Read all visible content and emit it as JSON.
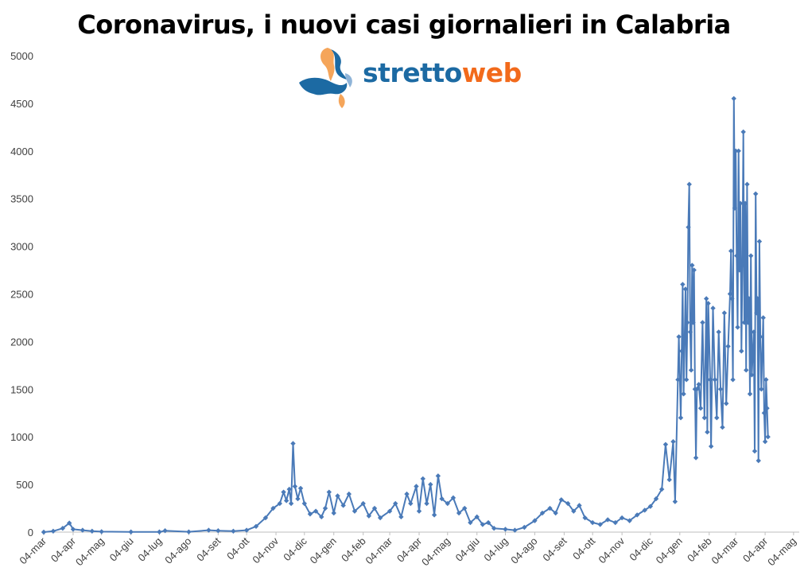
{
  "header": {
    "title": "Coronavirus, i nuovi casi giornalieri in Calabria"
  },
  "logo": {
    "part1": "stretto",
    "part2": "web",
    "color1": "#1c6aa3",
    "color2": "#f26a1b"
  },
  "chart_data": {
    "type": "line",
    "title": "Coronavirus, i nuovi casi giornalieri in Calabria",
    "xlabel": "",
    "ylabel": "",
    "ylim": [
      0,
      5000
    ],
    "yticks": [
      0,
      500,
      1000,
      1500,
      2000,
      2500,
      3000,
      3500,
      4000,
      4500,
      5000
    ],
    "x_range": [
      "2020-03-04",
      "2022-05-10"
    ],
    "xtick_labels": [
      "04-mar",
      "04-apr",
      "04-mag",
      "04-giu",
      "04-lug",
      "04-ago",
      "04-set",
      "04-ott",
      "04-nov",
      "04-dic",
      "04-gen",
      "04-feb",
      "04-mar",
      "04-apr",
      "04-mag",
      "04-giu",
      "04-lug",
      "04-ago",
      "04-set",
      "04-ott",
      "04-nov",
      "04-dic",
      "04-gen",
      "04-feb",
      "04-mar",
      "04-apr",
      "04-mag"
    ],
    "xtick_dates": [
      "2020-03-04",
      "2020-04-04",
      "2020-05-04",
      "2020-06-04",
      "2020-07-04",
      "2020-08-04",
      "2020-09-04",
      "2020-10-04",
      "2020-11-04",
      "2020-12-04",
      "2021-01-04",
      "2021-02-04",
      "2021-03-04",
      "2021-04-04",
      "2021-05-04",
      "2021-06-04",
      "2021-07-04",
      "2021-08-04",
      "2021-09-04",
      "2021-10-04",
      "2021-11-04",
      "2021-12-04",
      "2022-01-04",
      "2022-02-04",
      "2022-03-04",
      "2022-04-04",
      "2022-05-04"
    ],
    "grid": false,
    "legend": "none",
    "series": [
      {
        "color": "#4a7ab8",
        "marker": "diamond",
        "points": [
          {
            "x": "2020-03-04",
            "y": 0
          },
          {
            "x": "2020-03-14",
            "y": 10
          },
          {
            "x": "2020-03-24",
            "y": 40
          },
          {
            "x": "2020-03-31",
            "y": 95
          },
          {
            "x": "2020-04-04",
            "y": 30
          },
          {
            "x": "2020-04-14",
            "y": 20
          },
          {
            "x": "2020-04-24",
            "y": 10
          },
          {
            "x": "2020-05-04",
            "y": 5
          },
          {
            "x": "2020-06-04",
            "y": 2
          },
          {
            "x": "2020-07-04",
            "y": 2
          },
          {
            "x": "2020-07-10",
            "y": 15
          },
          {
            "x": "2020-08-04",
            "y": 3
          },
          {
            "x": "2020-08-25",
            "y": 20
          },
          {
            "x": "2020-09-04",
            "y": 15
          },
          {
            "x": "2020-09-20",
            "y": 10
          },
          {
            "x": "2020-10-04",
            "y": 20
          },
          {
            "x": "2020-10-14",
            "y": 60
          },
          {
            "x": "2020-10-24",
            "y": 150
          },
          {
            "x": "2020-11-01",
            "y": 250
          },
          {
            "x": "2020-11-08",
            "y": 300
          },
          {
            "x": "2020-11-12",
            "y": 420
          },
          {
            "x": "2020-11-15",
            "y": 330
          },
          {
            "x": "2020-11-18",
            "y": 450
          },
          {
            "x": "2020-11-20",
            "y": 300
          },
          {
            "x": "2020-11-22",
            "y": 930
          },
          {
            "x": "2020-11-24",
            "y": 480
          },
          {
            "x": "2020-11-27",
            "y": 350
          },
          {
            "x": "2020-11-30",
            "y": 460
          },
          {
            "x": "2020-12-04",
            "y": 300
          },
          {
            "x": "2020-12-10",
            "y": 190
          },
          {
            "x": "2020-12-16",
            "y": 220
          },
          {
            "x": "2020-12-22",
            "y": 160
          },
          {
            "x": "2020-12-26",
            "y": 250
          },
          {
            "x": "2020-12-30",
            "y": 420
          },
          {
            "x": "2021-01-04",
            "y": 200
          },
          {
            "x": "2021-01-08",
            "y": 380
          },
          {
            "x": "2021-01-14",
            "y": 280
          },
          {
            "x": "2021-01-20",
            "y": 400
          },
          {
            "x": "2021-01-26",
            "y": 220
          },
          {
            "x": "2021-02-04",
            "y": 300
          },
          {
            "x": "2021-02-10",
            "y": 170
          },
          {
            "x": "2021-02-16",
            "y": 250
          },
          {
            "x": "2021-02-22",
            "y": 150
          },
          {
            "x": "2021-03-04",
            "y": 220
          },
          {
            "x": "2021-03-10",
            "y": 300
          },
          {
            "x": "2021-03-16",
            "y": 160
          },
          {
            "x": "2021-03-22",
            "y": 400
          },
          {
            "x": "2021-03-26",
            "y": 300
          },
          {
            "x": "2021-04-01",
            "y": 480
          },
          {
            "x": "2021-04-04",
            "y": 220
          },
          {
            "x": "2021-04-08",
            "y": 560
          },
          {
            "x": "2021-04-12",
            "y": 300
          },
          {
            "x": "2021-04-16",
            "y": 500
          },
          {
            "x": "2021-04-20",
            "y": 180
          },
          {
            "x": "2021-04-24",
            "y": 590
          },
          {
            "x": "2021-04-28",
            "y": 350
          },
          {
            "x": "2021-05-04",
            "y": 300
          },
          {
            "x": "2021-05-10",
            "y": 360
          },
          {
            "x": "2021-05-16",
            "y": 200
          },
          {
            "x": "2021-05-22",
            "y": 250
          },
          {
            "x": "2021-05-28",
            "y": 100
          },
          {
            "x": "2021-06-04",
            "y": 160
          },
          {
            "x": "2021-06-10",
            "y": 80
          },
          {
            "x": "2021-06-16",
            "y": 100
          },
          {
            "x": "2021-06-22",
            "y": 40
          },
          {
            "x": "2021-07-04",
            "y": 30
          },
          {
            "x": "2021-07-14",
            "y": 20
          },
          {
            "x": "2021-07-24",
            "y": 50
          },
          {
            "x": "2021-08-04",
            "y": 120
          },
          {
            "x": "2021-08-12",
            "y": 200
          },
          {
            "x": "2021-08-20",
            "y": 250
          },
          {
            "x": "2021-08-26",
            "y": 200
          },
          {
            "x": "2021-09-01",
            "y": 340
          },
          {
            "x": "2021-09-08",
            "y": 300
          },
          {
            "x": "2021-09-14",
            "y": 220
          },
          {
            "x": "2021-09-20",
            "y": 280
          },
          {
            "x": "2021-09-26",
            "y": 150
          },
          {
            "x": "2021-10-04",
            "y": 100
          },
          {
            "x": "2021-10-12",
            "y": 80
          },
          {
            "x": "2021-10-20",
            "y": 130
          },
          {
            "x": "2021-10-28",
            "y": 100
          },
          {
            "x": "2021-11-04",
            "y": 150
          },
          {
            "x": "2021-11-12",
            "y": 120
          },
          {
            "x": "2021-11-20",
            "y": 180
          },
          {
            "x": "2021-11-28",
            "y": 230
          },
          {
            "x": "2021-12-04",
            "y": 270
          },
          {
            "x": "2021-12-10",
            "y": 350
          },
          {
            "x": "2021-12-16",
            "y": 450
          },
          {
            "x": "2021-12-20",
            "y": 920
          },
          {
            "x": "2021-12-24",
            "y": 550
          },
          {
            "x": "2021-12-28",
            "y": 950
          },
          {
            "x": "2021-12-30",
            "y": 320
          },
          {
            "x": "2022-01-02",
            "y": 1600
          },
          {
            "x": "2022-01-03",
            "y": 2050
          },
          {
            "x": "2022-01-05",
            "y": 1200
          },
          {
            "x": "2022-01-06",
            "y": 1900
          },
          {
            "x": "2022-01-07",
            "y": 2600
          },
          {
            "x": "2022-01-08",
            "y": 1450
          },
          {
            "x": "2022-01-10",
            "y": 2550
          },
          {
            "x": "2022-01-11",
            "y": 1600
          },
          {
            "x": "2022-01-12",
            "y": 2200
          },
          {
            "x": "2022-01-13",
            "y": 3200
          },
          {
            "x": "2022-01-14",
            "y": 3650
          },
          {
            "x": "2022-01-15",
            "y": 2100
          },
          {
            "x": "2022-01-16",
            "y": 1700
          },
          {
            "x": "2022-01-17",
            "y": 2800
          },
          {
            "x": "2022-01-18",
            "y": 2200
          },
          {
            "x": "2022-01-19",
            "y": 2750
          },
          {
            "x": "2022-01-20",
            "y": 1500
          },
          {
            "x": "2022-01-21",
            "y": 780
          },
          {
            "x": "2022-01-22",
            "y": 1500
          },
          {
            "x": "2022-01-24",
            "y": 1550
          },
          {
            "x": "2022-01-26",
            "y": 1300
          },
          {
            "x": "2022-01-28",
            "y": 2200
          },
          {
            "x": "2022-01-30",
            "y": 1200
          },
          {
            "x": "2022-02-01",
            "y": 2450
          },
          {
            "x": "2022-02-02",
            "y": 1050
          },
          {
            "x": "2022-02-03",
            "y": 2400
          },
          {
            "x": "2022-02-05",
            "y": 1600
          },
          {
            "x": "2022-02-06",
            "y": 900
          },
          {
            "x": "2022-02-08",
            "y": 2350
          },
          {
            "x": "2022-02-10",
            "y": 1600
          },
          {
            "x": "2022-02-12",
            "y": 1200
          },
          {
            "x": "2022-02-14",
            "y": 2100
          },
          {
            "x": "2022-02-16",
            "y": 1500
          },
          {
            "x": "2022-02-18",
            "y": 1100
          },
          {
            "x": "2022-02-20",
            "y": 2300
          },
          {
            "x": "2022-02-22",
            "y": 1350
          },
          {
            "x": "2022-02-24",
            "y": 1950
          },
          {
            "x": "2022-02-26",
            "y": 2500
          },
          {
            "x": "2022-02-27",
            "y": 2950
          },
          {
            "x": "2022-02-28",
            "y": 2450
          },
          {
            "x": "2022-03-01",
            "y": 1600
          },
          {
            "x": "2022-03-02",
            "y": 4550
          },
          {
            "x": "2022-03-03",
            "y": 3400
          },
          {
            "x": "2022-03-04",
            "y": 4000
          },
          {
            "x": "2022-03-05",
            "y": 2900
          },
          {
            "x": "2022-03-06",
            "y": 2150
          },
          {
            "x": "2022-03-07",
            "y": 4000
          },
          {
            "x": "2022-03-08",
            "y": 2750
          },
          {
            "x": "2022-03-09",
            "y": 3450
          },
          {
            "x": "2022-03-10",
            "y": 1900
          },
          {
            "x": "2022-03-11",
            "y": 2800
          },
          {
            "x": "2022-03-12",
            "y": 4200
          },
          {
            "x": "2022-03-13",
            "y": 2200
          },
          {
            "x": "2022-03-14",
            "y": 3450
          },
          {
            "x": "2022-03-15",
            "y": 1700
          },
          {
            "x": "2022-03-16",
            "y": 3650
          },
          {
            "x": "2022-03-17",
            "y": 2200
          },
          {
            "x": "2022-03-18",
            "y": 2450
          },
          {
            "x": "2022-03-19",
            "y": 1450
          },
          {
            "x": "2022-03-20",
            "y": 2900
          },
          {
            "x": "2022-03-21",
            "y": 1650
          },
          {
            "x": "2022-03-23",
            "y": 2100
          },
          {
            "x": "2022-03-24",
            "y": 850
          },
          {
            "x": "2022-03-25",
            "y": 3550
          },
          {
            "x": "2022-03-26",
            "y": 2300
          },
          {
            "x": "2022-03-27",
            "y": 2450
          },
          {
            "x": "2022-03-28",
            "y": 750
          },
          {
            "x": "2022-03-29",
            "y": 3050
          },
          {
            "x": "2022-03-30",
            "y": 2050
          },
          {
            "x": "2022-03-31",
            "y": 1500
          },
          {
            "x": "2022-04-02",
            "y": 2250
          },
          {
            "x": "2022-04-03",
            "y": 1250
          },
          {
            "x": "2022-04-04",
            "y": 950
          },
          {
            "x": "2022-04-05",
            "y": 1600
          },
          {
            "x": "2022-04-06",
            "y": 1300
          },
          {
            "x": "2022-04-07",
            "y": 1000
          }
        ]
      }
    ]
  }
}
